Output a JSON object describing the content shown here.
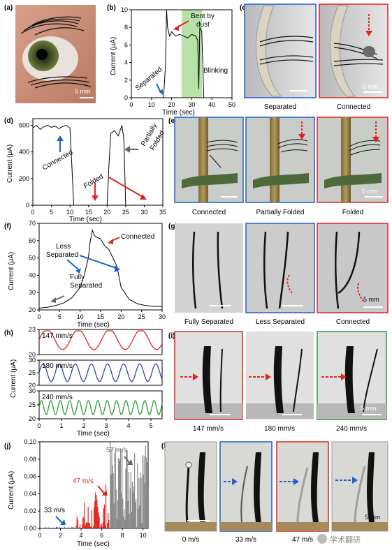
{
  "panels": {
    "a": {
      "label": "(a)",
      "scale": "5 mm"
    },
    "b": {
      "label": "(b)",
      "ylabel": "Current (μA)",
      "xlabel": "Time (sec)",
      "yticks": [
        "0",
        "2",
        "4",
        "6",
        "8",
        "10"
      ],
      "xticks": [
        "0",
        "10",
        "20",
        "30",
        "40",
        "50"
      ],
      "ann_separated": "Separated",
      "ann_bent1": "Bent by",
      "ann_bent2": "dust",
      "ann_blinking": "Blinking"
    },
    "c": {
      "label": "(c)",
      "cap1": "Separated",
      "cap2": "Connected",
      "scale": "5 mm"
    },
    "d": {
      "label": "(d)",
      "ylabel": "Current (μA)",
      "xlabel": "Time (sec)",
      "yticks": [
        "0",
        "200",
        "400",
        "600"
      ],
      "xticks": [
        "0",
        "5",
        "10",
        "15",
        "20",
        "25",
        "30",
        "35"
      ],
      "ann_connected": "Connected",
      "ann_folded": "Folded",
      "ann_partially1": "Partially",
      "ann_partially2": "Folded"
    },
    "e": {
      "label": "(e)",
      "cap1": "Connected",
      "cap2": "Partially Folded",
      "cap3": "Folded",
      "scale": "5 mm"
    },
    "f": {
      "label": "(f)",
      "ylabel": "Current (μA)",
      "xlabel": "Time (sec)",
      "yticks": [
        "20",
        "30",
        "40",
        "50",
        "60",
        "70"
      ],
      "xticks": [
        "0",
        "5",
        "10",
        "15",
        "20",
        "25",
        "30"
      ],
      "ann_less1": "Less",
      "ann_less2": "Separated",
      "ann_connected": "Connected",
      "ann_fully1": "Fully",
      "ann_fully2": "Separated"
    },
    "g": {
      "label": "(g)",
      "cap1": "Fully Separated",
      "cap2": "Less Separated",
      "cap3": "Connected",
      "scale": "5 mm"
    },
    "h": {
      "label": "(h)",
      "ylabel": "Current (μA)",
      "xlabel": "Time (sec)",
      "s1_name": "147 mm/s",
      "s1_ticks": [
        "20",
        "23"
      ],
      "s2_name": "180 mm/s",
      "s2_ticks": [
        "20",
        "25",
        "30"
      ],
      "s3_name": "240 mm/s",
      "s3_ticks": [
        "20",
        "25",
        "30"
      ],
      "xticks": [
        "0",
        "1",
        "2",
        "3",
        "4",
        "5"
      ]
    },
    "i": {
      "label": "(i)",
      "cap1": "147 mm/s",
      "cap2": "180 mm/s",
      "cap3": "240 mm/s",
      "scale": "5 mm"
    },
    "j": {
      "label": "(j)",
      "ylabel": "Current (μA)",
      "xlabel": "Time (sec)",
      "yticks": [
        "0.00",
        "0.02",
        "0.04",
        "0.06",
        "0.08",
        "0.10"
      ],
      "xticks": [
        "0",
        "2",
        "4",
        "6",
        "8",
        "10"
      ],
      "ann_33": "33 m/s",
      "ann_47": "47 m/s",
      "ann_57": "57 m/s"
    },
    "k": {
      "label": "(k)",
      "cap1": "0 m/s",
      "cap2": "33 m/s",
      "cap3": "47 m/s",
      "scale": "5 mm"
    }
  },
  "watermark": "学术翻研",
  "colors": {
    "blue": "#1f5fd0",
    "red": "#e0241c",
    "gray": "#666666",
    "green": "#2e9a3a",
    "navy": "#2b4aa0",
    "greenband": "#b7e1a6"
  },
  "chart_data": [
    {
      "panel": "b",
      "type": "line",
      "xlim": [
        0,
        50
      ],
      "ylim": [
        0,
        10
      ],
      "x": [
        0,
        10,
        15,
        16,
        17,
        17.5,
        18,
        19,
        20,
        22,
        24,
        26,
        28,
        30,
        32,
        33,
        33.5,
        34,
        35,
        36,
        37,
        38,
        40,
        42,
        44,
        46,
        48,
        50
      ],
      "y": [
        0,
        0,
        0,
        0,
        4,
        10,
        8,
        7,
        7.5,
        7,
        7.2,
        7,
        6.8,
        7.2,
        7,
        6.5,
        1,
        8,
        7.5,
        0,
        0,
        0,
        0,
        0,
        0,
        0,
        0,
        0
      ]
    },
    {
      "panel": "d",
      "type": "line",
      "xlim": [
        0,
        35
      ],
      "ylim": [
        0,
        650
      ],
      "x": [
        0,
        1,
        2,
        3,
        4,
        5,
        6,
        7,
        8,
        9,
        10,
        10.5,
        11,
        15,
        20,
        20.5,
        21,
        22,
        23,
        24,
        24.5,
        25,
        30,
        35
      ],
      "y": [
        580,
        600,
        570,
        590,
        600,
        585,
        595,
        575,
        590,
        600,
        580,
        300,
        0,
        0,
        0,
        300,
        540,
        560,
        520,
        600,
        500,
        0,
        0,
        0
      ]
    },
    {
      "panel": "f",
      "type": "line",
      "xlim": [
        0,
        30
      ],
      "ylim": [
        20,
        70
      ],
      "x": [
        0,
        2,
        4,
        6,
        8,
        10,
        11,
        12,
        12.5,
        13,
        13.5,
        14,
        15,
        16,
        17,
        18,
        19,
        20,
        22,
        24,
        26,
        28,
        30
      ],
      "y": [
        21,
        21.5,
        22.5,
        24,
        27,
        33,
        40,
        50,
        60,
        66,
        63,
        62,
        61,
        57,
        55,
        50,
        45,
        33,
        26,
        23.5,
        22.5,
        22,
        22
      ]
    },
    {
      "panel": "h",
      "type": "line",
      "xlim": [
        0,
        5.5
      ],
      "series": [
        {
          "name": "147 mm/s",
          "amp": 1.2,
          "base": 21.8,
          "period": 1.4,
          "ylim": [
            20,
            23
          ]
        },
        {
          "name": "180 mm/s",
          "amp": 3.5,
          "base": 25,
          "period": 0.72,
          "ylim": [
            20,
            30
          ]
        },
        {
          "name": "240 mm/s",
          "amp": 2.5,
          "base": 24,
          "period": 0.42,
          "ylim": [
            20,
            30
          ]
        }
      ]
    },
    {
      "panel": "j",
      "type": "bar",
      "xlim": [
        0,
        10.5
      ],
      "ylim": [
        0,
        0.1
      ],
      "series": [
        {
          "name": "33 m/s",
          "x0": 0,
          "x1": 3.5,
          "max": 0.002
        },
        {
          "name": "47 m/s",
          "x0": 3.5,
          "x1": 6.8,
          "max": 0.06
        },
        {
          "name": "57 m/s",
          "x0": 6.8,
          "x1": 10.5,
          "max": 0.1
        }
      ]
    }
  ]
}
